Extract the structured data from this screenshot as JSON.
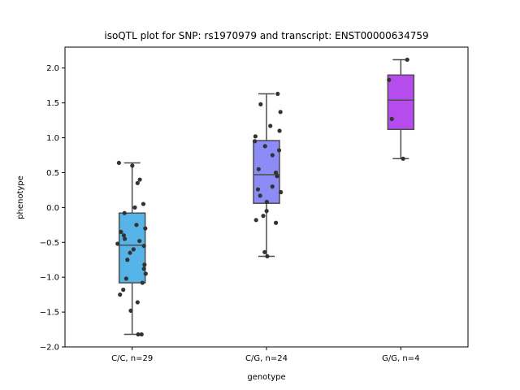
{
  "chart_data": {
    "type": "box",
    "title": "isoQTL plot for SNP: rs1970979 and transcript: ENST00000634759",
    "xlabel": "genotype",
    "ylabel": "phenotype",
    "ylim": [
      -2.0,
      2.3
    ],
    "yticks": [
      -2.0,
      -1.5,
      -1.0,
      -0.5,
      0.0,
      0.5,
      1.0,
      1.5,
      2.0
    ],
    "ytick_labels": [
      "−2.0",
      "−1.5",
      "−1.0",
      "−0.5",
      "0.0",
      "0.5",
      "1.0",
      "1.5",
      "2.0"
    ],
    "grid": false,
    "categories": [
      "C/C, n=29",
      "C/G, n=24",
      "G/G, n=4"
    ],
    "boxes": [
      {
        "category": "C/C, n=29",
        "color": "#56b4e9",
        "whisker_low": -1.82,
        "q1": -1.08,
        "median": -0.54,
        "q3": -0.08,
        "whisker_high": 0.64,
        "points": [
          0.64,
          0.6,
          0.4,
          0.35,
          0.05,
          0.0,
          -0.08,
          -0.25,
          -0.3,
          -0.35,
          -0.4,
          -0.45,
          -0.48,
          -0.52,
          -0.55,
          -0.6,
          -0.65,
          -0.75,
          -0.82,
          -0.88,
          -0.95,
          -1.02,
          -1.08,
          -1.18,
          -1.25,
          -1.36,
          -1.48,
          -1.82,
          -1.82
        ]
      },
      {
        "category": "C/G, n=24",
        "color": "#8c8cf7",
        "whisker_low": -0.7,
        "q1": 0.06,
        "median": 0.47,
        "q3": 0.96,
        "whisker_high": 1.63,
        "points": [
          1.63,
          1.48,
          1.37,
          1.17,
          1.1,
          1.02,
          0.95,
          0.88,
          0.82,
          0.75,
          0.55,
          0.5,
          0.45,
          0.3,
          0.26,
          0.22,
          0.17,
          0.08,
          -0.05,
          -0.12,
          -0.18,
          -0.22,
          -0.64,
          -0.7
        ]
      },
      {
        "category": "G/G, n=4",
        "color": "#b64ced",
        "whisker_low": 0.7,
        "q1": 1.12,
        "median": 1.54,
        "q3": 1.9,
        "whisker_high": 2.12,
        "points": [
          2.12,
          1.83,
          1.27,
          0.7
        ]
      }
    ]
  }
}
